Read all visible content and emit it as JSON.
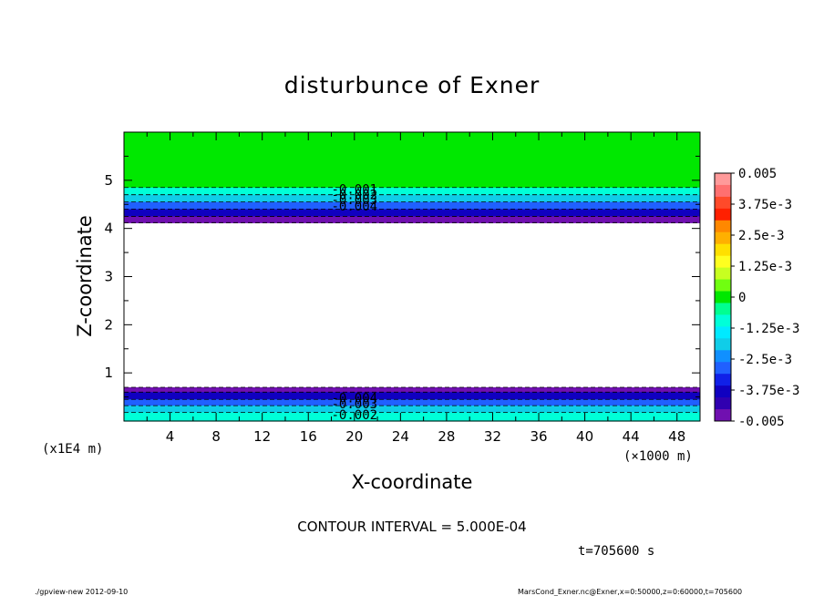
{
  "chart_data": {
    "type": "heatmap",
    "title": "disturbunce of Exner",
    "xlabel": "X-coordinate",
    "ylabel": "Z-coordinate",
    "x_unit": "(×1000 m)",
    "y_unit": "(x1E4 m)",
    "xlim": [
      0,
      50
    ],
    "ylim": [
      0,
      6
    ],
    "x_ticks": [
      "4",
      "8",
      "12",
      "16",
      "20",
      "24",
      "28",
      "32",
      "36",
      "40",
      "44",
      "48"
    ],
    "y_ticks": [
      "1",
      "2",
      "3",
      "4",
      "5"
    ],
    "colorbar": {
      "labels": [
        "0.005",
        "3.75e-3",
        "2.5e-3",
        "1.25e-3",
        "0",
        "-1.25e-3",
        "-2.5e-3",
        "-3.75e-3",
        "-0.005"
      ],
      "levels": [
        0.005,
        0.00375,
        0.0025,
        0.00125,
        0,
        -0.00125,
        -0.0025,
        -0.00375,
        -0.005
      ],
      "colors": [
        "#ff9a9a",
        "#ff7070",
        "#ff4a2a",
        "#ff2000",
        "#ff8800",
        "#ffb000",
        "#ffe000",
        "#ffff20",
        "#c8ff20",
        "#70ff10",
        "#00e800",
        "#00ff90",
        "#00ffd8",
        "#00eaff",
        "#10cde8",
        "#1090ff",
        "#2060ff",
        "#1020e8",
        "#1000c0",
        "#3000b0",
        "#7010b0"
      ]
    },
    "layers": [
      {
        "z_range": [
          4.85,
          6.0
        ],
        "value": 0.0,
        "color": "#00e800"
      },
      {
        "z_range": [
          4.7,
          4.85
        ],
        "value": -0.001,
        "color": "#00ffd8"
      },
      {
        "z_range": [
          4.55,
          4.7
        ],
        "value": -0.002,
        "color": "#10cde8"
      },
      {
        "z_range": [
          4.4,
          4.55
        ],
        "value": -0.003,
        "color": "#2060ff"
      },
      {
        "z_range": [
          4.25,
          4.4
        ],
        "value": -0.004,
        "color": "#1000c0"
      },
      {
        "z_range": [
          4.12,
          4.25
        ],
        "value": -0.005,
        "color": "#7010b0"
      },
      {
        "z_range": [
          0.6,
          0.7
        ],
        "value": -0.005,
        "color": "#7010b0"
      },
      {
        "z_range": [
          0.45,
          0.6
        ],
        "value": -0.004,
        "color": "#1000c0"
      },
      {
        "z_range": [
          0.32,
          0.45
        ],
        "value": -0.003,
        "color": "#2060ff"
      },
      {
        "z_range": [
          0.18,
          0.32
        ],
        "value": -0.002,
        "color": "#10cde8"
      },
      {
        "z_range": [
          0.0,
          0.18
        ],
        "value": -0.001,
        "color": "#00ffd8"
      }
    ],
    "contour_labels": [
      {
        "text": "-0.001",
        "x": 20,
        "z": 4.82
      },
      {
        "text": "-0.002",
        "x": 20,
        "z": 4.7
      },
      {
        "text": "-0.003",
        "x": 20,
        "z": 4.6
      },
      {
        "text": "-0.004",
        "x": 20,
        "z": 4.47
      },
      {
        "text": "-0.004",
        "x": 20,
        "z": 0.48
      },
      {
        "text": "-0.003",
        "x": 20,
        "z": 0.36
      },
      {
        "text": "-0.002",
        "x": 20,
        "z": 0.13
      }
    ],
    "contour_interval": "CONTOUR INTERVAL = 5.000E-04",
    "time": "t=705600 s"
  },
  "footer": {
    "left": "./gpview-new  2012-09-10",
    "right": "MarsCond_Exner.nc@Exner,x=0:50000,z=0:60000,t=705600"
  }
}
